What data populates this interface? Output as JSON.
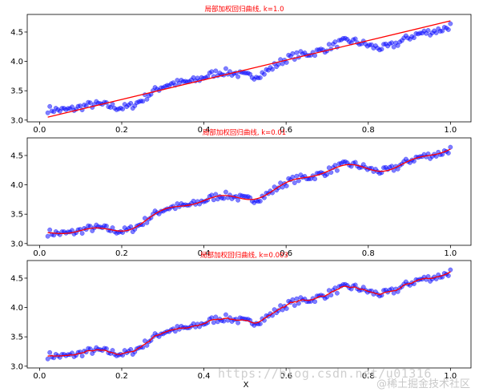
{
  "chart_data": [
    {
      "type": "scatter",
      "title": "局部加权回归曲线, k=1.0",
      "xlabel": "",
      "ylabel": "",
      "xlim": [
        -0.03,
        1.05
      ],
      "ylim": [
        2.97,
        4.8
      ],
      "xticks": [
        "0.0",
        "0.2",
        "0.4",
        "0.6",
        "0.8",
        "1.0"
      ],
      "yticks": [
        "3.0",
        "3.5",
        "4.0",
        "4.5"
      ],
      "fit": "linear",
      "series": [
        {
          "kind": "points",
          "color": "#0000ff"
        },
        {
          "kind": "curve",
          "color": "#ff0000"
        }
      ]
    },
    {
      "type": "scatter",
      "title": "局部加权回归曲线, k=0.01",
      "xlabel": "",
      "ylabel": "",
      "xlim": [
        -0.03,
        1.05
      ],
      "ylim": [
        2.97,
        4.8
      ],
      "xticks": [
        "0.0",
        "0.2",
        "0.4",
        "0.6",
        "0.8",
        "1.0"
      ],
      "yticks": [
        "3.0",
        "3.5",
        "4.0",
        "4.5"
      ],
      "fit": "smooth",
      "series": [
        {
          "kind": "points",
          "color": "#0000ff"
        },
        {
          "kind": "curve",
          "color": "#ff0000"
        }
      ]
    },
    {
      "type": "scatter",
      "title": "局部加权回归曲线, k=0.003",
      "xlabel": "X",
      "ylabel": "",
      "xlim": [
        -0.03,
        1.05
      ],
      "ylim": [
        2.97,
        4.8
      ],
      "xticks": [
        "0.0",
        "0.2",
        "0.4",
        "0.6",
        "0.8",
        "1.0"
      ],
      "yticks": [
        "3.0",
        "3.5",
        "4.0",
        "4.5"
      ],
      "fit": "wiggly",
      "series": [
        {
          "kind": "points",
          "color": "#0000ff"
        },
        {
          "kind": "curve",
          "color": "#ff0000"
        }
      ]
    }
  ],
  "watermark": {
    "url": "https://blog.csdn.net/u01316",
    "handle": "@稀土掘金技术社区"
  }
}
